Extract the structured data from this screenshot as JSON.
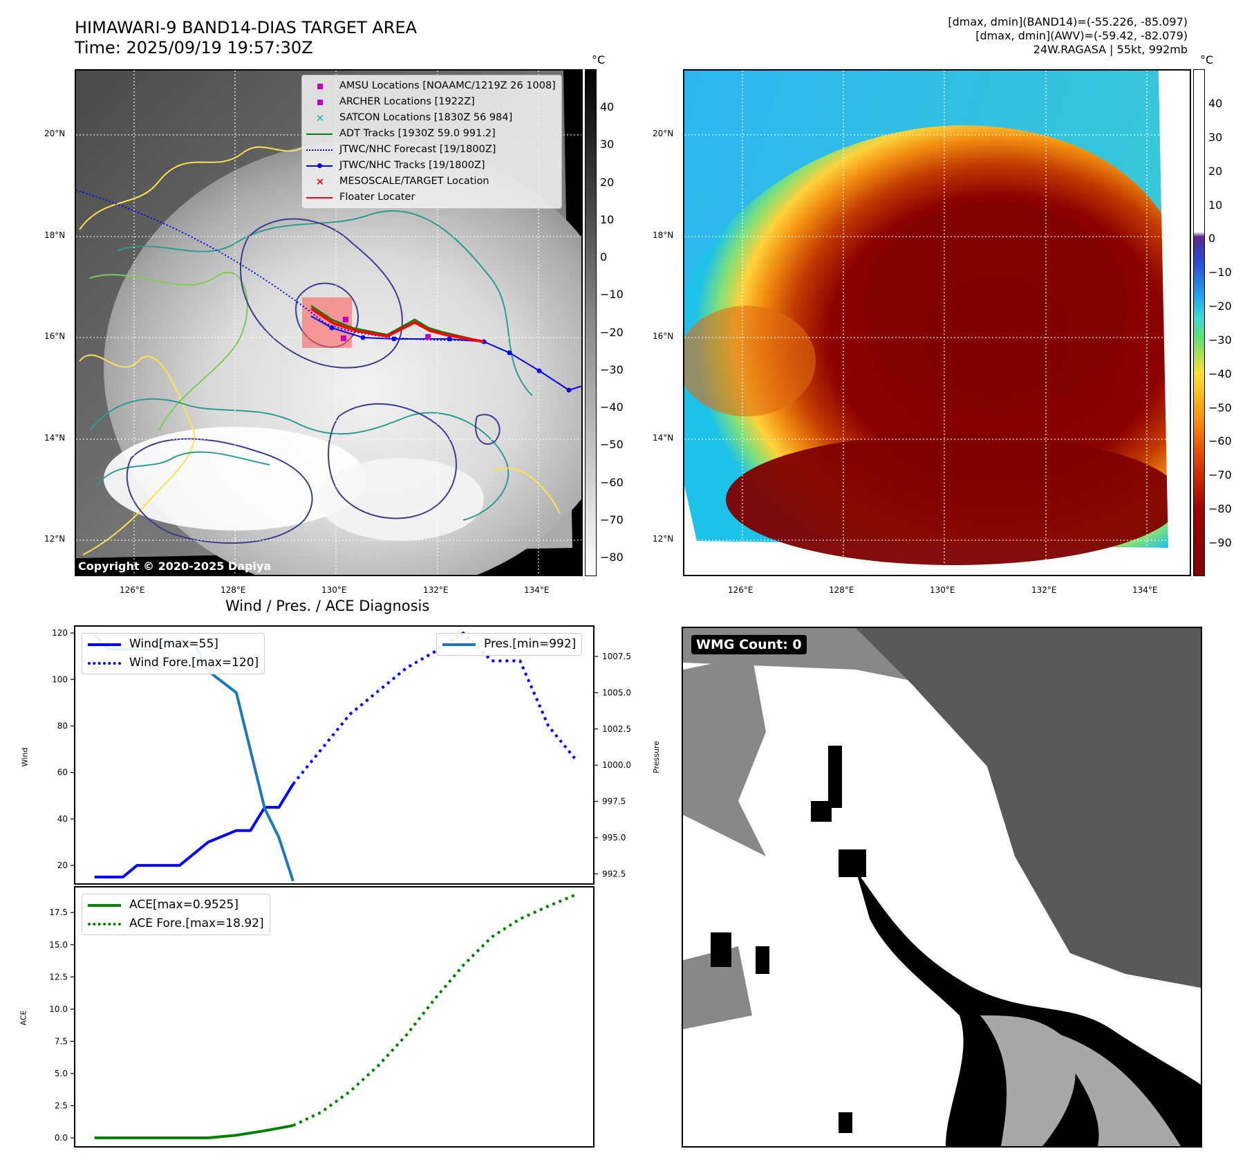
{
  "header": {
    "title_line1": "HIMAWARI-9 BAND14-DIAS TARGET AREA",
    "title_line2": "Time: 2025/09/19 19:57:30Z",
    "right_line1": "[dmax, dmin](BAND14)=(-55.226, -85.097)",
    "right_line2": "[dmax, dmin](AWV)=(-59.42, -82.079)",
    "right_line3": "24W.RAGASA | 55kt, 992mb"
  },
  "map": {
    "lat_labels": [
      "20°N",
      "18°N",
      "16°N",
      "14°N",
      "12°N"
    ],
    "lon_labels": [
      "126°E",
      "128°E",
      "130°E",
      "132°E",
      "134°E"
    ],
    "copyright": "Copyright © 2020-2025 Dapiya",
    "legend": [
      {
        "label": "AMSU Locations [NOAAMC/1219Z 26 1008]",
        "symbol": "square",
        "color": "#c000c0"
      },
      {
        "label": "ARCHER Locations [1922Z]",
        "symbol": "square",
        "color": "#c000c0"
      },
      {
        "label": "SATCON Locations [1830Z 56 984]",
        "symbol": "x",
        "color": "#17becf"
      },
      {
        "label": "ADT Tracks [1930Z 59.0 991.2]",
        "symbol": "line",
        "color": "#008000"
      },
      {
        "label": "JTWC/NHC Forecast [19/1800Z]",
        "symbol": "dotted",
        "color": "#0000ff"
      },
      {
        "label": "JTWC/NHC Tracks [19/1800Z]",
        "symbol": "line-dot",
        "color": "#0000ff"
      },
      {
        "label": "MESOSCALE/TARGET Location",
        "symbol": "x",
        "color": "#ff0000"
      },
      {
        "label": "Floater Locater",
        "symbol": "line",
        "color": "#ff0000"
      }
    ]
  },
  "colorbar_left": {
    "unit": "°C",
    "ticks": [
      "40",
      "30",
      "20",
      "10",
      "0",
      "−10",
      "−20",
      "−30",
      "−40",
      "−50",
      "−60",
      "−70",
      "−80"
    ]
  },
  "colorbar_right": {
    "unit": "°C",
    "ticks": [
      "40",
      "30",
      "20",
      "10",
      "0",
      "−10",
      "−20",
      "−30",
      "−40",
      "−50",
      "−60",
      "−70",
      "−80",
      "−90"
    ]
  },
  "wmg": {
    "label": "WMG Count: 0"
  },
  "diagnosis": {
    "title": "Wind / Pres. / ACE Diagnosis",
    "wind_ylabel": "Wind",
    "pres_ylabel": "Pressure",
    "ace_ylabel": "ACE"
  },
  "chart_data": [
    {
      "type": "line",
      "title": "Wind / Pres. / ACE Diagnosis",
      "ylabel": "Wind",
      "ylabel_right": "Pressure",
      "ylim": [
        12,
        123
      ],
      "ylim_right": [
        991.8,
        1009.6
      ],
      "xlim": [
        -0.7,
        17.6
      ],
      "yticks": [
        "20",
        "40",
        "60",
        "80",
        "100",
        "120"
      ],
      "yticks_right": [
        "992.5",
        "995.0",
        "997.5",
        "1000.0",
        "1002.5",
        "1005.0",
        "1007.5"
      ],
      "series": [
        {
          "name": "Wind[max=55]",
          "color": "#0000ff",
          "style": "solid",
          "x": [
            0,
            1,
            1.5,
            2,
            3,
            3.5,
            4,
            5,
            5.5,
            6,
            6.5,
            7
          ],
          "y": [
            15,
            15,
            20,
            20,
            20,
            25,
            30,
            35,
            35,
            45,
            45,
            55
          ]
        },
        {
          "name": "Wind Fore.[max=120]",
          "color": "#0000ff",
          "style": "dotted",
          "x": [
            7,
            8,
            9,
            10,
            11,
            12,
            13,
            14,
            15,
            16,
            17
          ],
          "y": [
            55,
            70,
            85,
            95,
            105,
            112,
            120,
            108,
            108,
            80,
            65
          ]
        },
        {
          "name": "Pres.[min=992]",
          "color": "#1f77b4",
          "style": "solid",
          "axis": "right",
          "x": [
            0,
            0.5,
            1,
            2,
            3,
            3.5,
            4,
            5,
            5.5,
            6,
            6.5,
            7
          ],
          "y": [
            1009,
            1008,
            1008,
            1008,
            1008.5,
            1008.5,
            1006.5,
            1005,
            1001,
            997,
            995,
            992
          ]
        }
      ]
    },
    {
      "type": "line",
      "ylabel": "ACE",
      "ylim": [
        -0.7,
        19.5
      ],
      "xlim": [
        -0.7,
        17.6
      ],
      "yticks": [
        "0.0",
        "2.5",
        "5.0",
        "7.5",
        "10.0",
        "12.5",
        "15.0",
        "17.5"
      ],
      "series": [
        {
          "name": "ACE[max=0.9525]",
          "color": "#008000",
          "style": "solid",
          "x": [
            0,
            1,
            2,
            3,
            4,
            5,
            6,
            7
          ],
          "y": [
            0,
            0,
            0,
            0,
            0,
            0.2,
            0.55,
            0.9525
          ]
        },
        {
          "name": "ACE Fore.[max=18.92]",
          "color": "#008000",
          "style": "dotted",
          "x": [
            7,
            8,
            9,
            10,
            11,
            12,
            13,
            14,
            15,
            16,
            17
          ],
          "y": [
            0.9525,
            2.0,
            3.6,
            5.6,
            8.0,
            10.8,
            13.4,
            15.6,
            17.0,
            18.0,
            18.92
          ]
        }
      ]
    }
  ]
}
